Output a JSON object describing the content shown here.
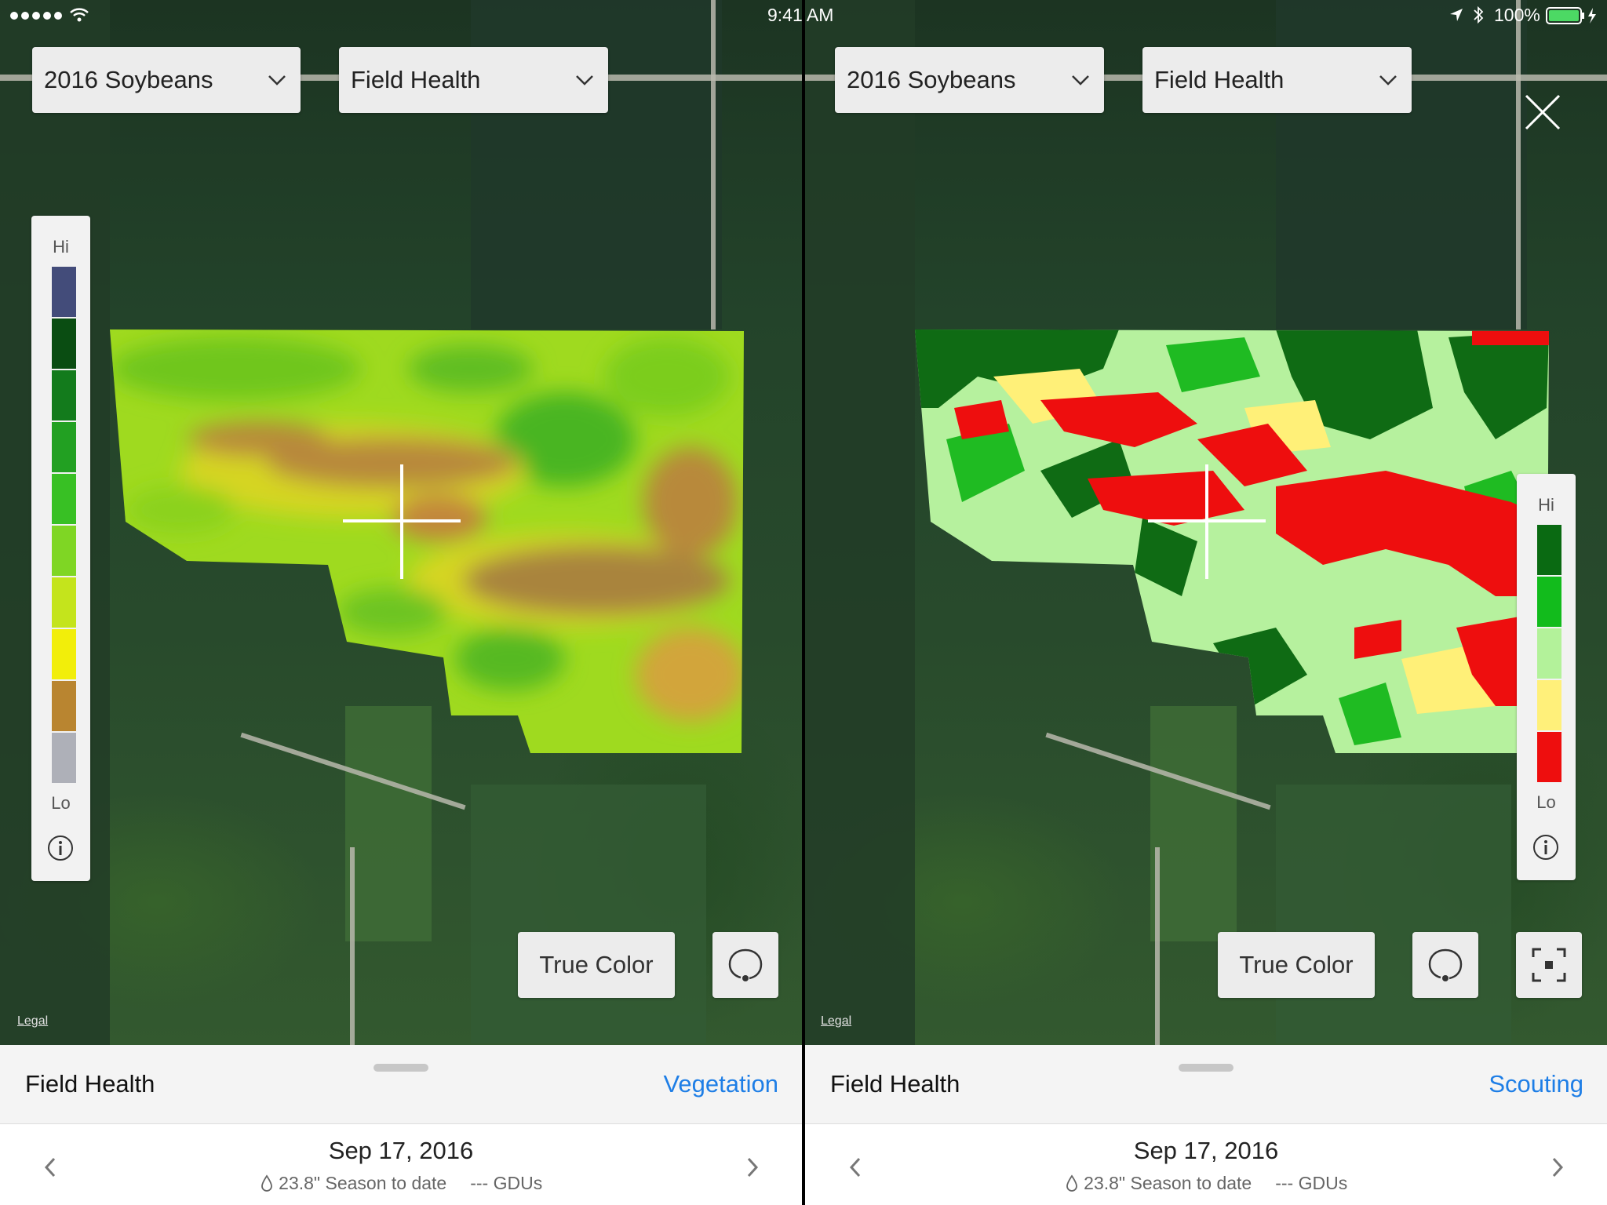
{
  "status_bar": {
    "time": "9:41 AM",
    "battery": "100%"
  },
  "left": {
    "season_dropdown": "2016 Soybeans",
    "layer_dropdown": "Field Health",
    "legend": {
      "hi": "Hi",
      "lo": "Lo",
      "colors": [
        "#434c7a",
        "#0a4d12",
        "#137b1c",
        "#22a022",
        "#38c024",
        "#7fd624",
        "#c4e41c",
        "#f2ee0a",
        "#b98530",
        "#aeb0b8"
      ]
    },
    "true_color_label": "True Color",
    "legal": "Legal",
    "sheet": {
      "title": "Field Health",
      "mode": "Vegetation",
      "date": "Sep 17, 2016",
      "rain": "23.8\" Season to date",
      "gdus": "--- GDUs"
    }
  },
  "right": {
    "season_dropdown": "2016 Soybeans",
    "layer_dropdown": "Field Health",
    "legend": {
      "hi": "Hi",
      "lo": "Lo",
      "colors": [
        "#0a6a12",
        "#12bb1c",
        "#b3f29a",
        "#fff07a",
        "#ee0e0e"
      ]
    },
    "true_color_label": "True Color",
    "legal": "Legal",
    "sheet": {
      "title": "Field Health",
      "mode": "Scouting",
      "date": "Sep 17, 2016",
      "rain": "23.8\" Season to date",
      "gdus": "--- GDUs"
    }
  }
}
